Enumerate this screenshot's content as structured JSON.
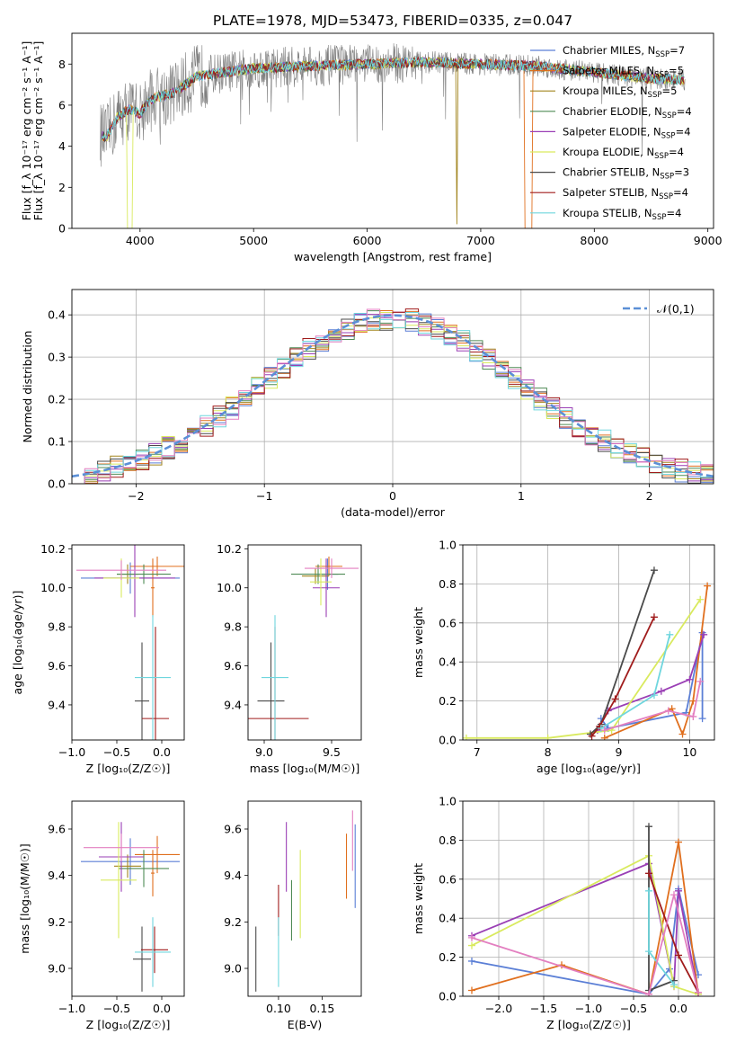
{
  "figure_title": "PLATE=1978, MJD=53473, FIBERID=0335, z=0.047",
  "models": [
    {
      "name": "Chabrier MILES",
      "nssp": "7",
      "color": "#5b7fd6"
    },
    {
      "name": "Salpeter MILES",
      "nssp": "5",
      "color": "#e06f1e"
    },
    {
      "name": "Kroupa MILES",
      "nssp": "5",
      "color": "#a2851f"
    },
    {
      "name": "Chabrier ELODIE",
      "nssp": "4",
      "color": "#4f8b55"
    },
    {
      "name": "Salpeter ELODIE",
      "nssp": "4",
      "color": "#9a3fb5"
    },
    {
      "name": "Kroupa ELODIE",
      "nssp": "4",
      "color": "#d9ea5e"
    },
    {
      "name": "Chabrier STELIB",
      "nssp": "3",
      "color": "#4a4a4a"
    },
    {
      "name": "Salpeter STELIB",
      "nssp": "4",
      "color": "#a01c1c"
    },
    {
      "name": "Kroupa STELIB",
      "nssp": "4",
      "color": "#6fd6de"
    }
  ],
  "extra_colors": {
    "pink": "#e37fc0",
    "data": "#7f7f7f",
    "normal": "#5b8fd6"
  },
  "chart_data": [
    {
      "id": "spectrum",
      "type": "line",
      "xlabel": "wavelength [Angstrom, rest frame]",
      "ylabel": "Flux [f_λ 10⁻¹⁷ erg cm⁻² s⁻¹ A⁻¹]",
      "xlim": [
        3400,
        9050
      ],
      "ylim": [
        0,
        9.5
      ],
      "xticks": [
        4000,
        5000,
        6000,
        7000,
        8000,
        9000
      ],
      "yticks": [
        0,
        2,
        4,
        6,
        8
      ],
      "legend_position": "upper right",
      "grid": false,
      "spectrum_trend": {
        "x": [
          3650,
          3700,
          3800,
          3900,
          4000,
          4100,
          4300,
          4500,
          5000,
          5500,
          6000,
          6500,
          7000,
          7500,
          8000,
          8500,
          8800
        ],
        "y": [
          4.6,
          4.4,
          5.4,
          5.8,
          5.6,
          6.3,
          6.6,
          7.4,
          7.8,
          7.9,
          8.0,
          8.1,
          8.0,
          7.9,
          7.6,
          7.3,
          7.2
        ]
      }
    },
    {
      "id": "residuals",
      "type": "histogram",
      "xlabel": "(data-model)/error",
      "ylabel": "Normed distribution",
      "xlim": [
        -2.5,
        2.5
      ],
      "ylim": [
        0,
        0.46
      ],
      "xticks": [
        -2,
        -1,
        0,
        1,
        2
      ],
      "yticks": [
        0.0,
        0.1,
        0.2,
        0.3,
        0.4
      ],
      "bin_width": 0.1,
      "grid": true,
      "legend_position": "upper right",
      "reference_curve": "𝒩(0,1)"
    },
    {
      "id": "age_vs_Z",
      "type": "errorbar",
      "xlabel": "Z [log₁₀(Z/Z☉)]",
      "ylabel": "age  [log₁₀(age/yr)]",
      "xlim": [
        -1.0,
        0.25
      ],
      "ylim": [
        9.22,
        10.22
      ],
      "xticks": [
        -1.0,
        -0.5,
        0.0
      ],
      "yticks": [
        9.4,
        9.6,
        9.8,
        10.0,
        10.2
      ],
      "points": [
        {
          "model": 0,
          "x": -0.35,
          "xerr": 0.55,
          "y": 10.05,
          "yerr": 0.08
        },
        {
          "model": 1,
          "x": -0.05,
          "xerr": 0.3,
          "y": 10.11,
          "yerr": 0.05
        },
        {
          "model": 1,
          "x": -0.1,
          "xerr": 0.02,
          "y": 10.0,
          "yerr": 0.15
        },
        {
          "model": 2,
          "x": -0.38,
          "xerr": 0.12,
          "y": 10.07,
          "yerr": 0.05
        },
        {
          "model": 3,
          "x": -0.2,
          "xerr": 0.3,
          "y": 10.07,
          "yerr": 0.05
        },
        {
          "model": 4,
          "x": -0.3,
          "xerr": 0.45,
          "y": 10.05,
          "yerr": 0.2
        },
        {
          "model": 5,
          "x": -0.45,
          "xerr": 0.2,
          "y": 10.05,
          "yerr": 0.1
        },
        {
          "model": 6,
          "x": -0.22,
          "xerr": 0.08,
          "y": 9.42,
          "yerr": 0.3
        },
        {
          "model": 7,
          "x": -0.07,
          "xerr": 0.15,
          "y": 9.33,
          "yerr": 0.47
        },
        {
          "model": 8,
          "x": -0.1,
          "xerr": 0.2,
          "y": 9.54,
          "yerr": 0.32
        },
        {
          "model": "pink",
          "x": -0.45,
          "xerr": 0.5,
          "y": 10.09,
          "yerr": 0.05
        }
      ]
    },
    {
      "id": "age_vs_mass",
      "type": "errorbar",
      "xlabel": "mass [log₁₀(M/M☉)]",
      "ylabel": "",
      "xlim": [
        8.88,
        9.72
      ],
      "ylim": [
        9.22,
        10.22
      ],
      "xticks": [
        9.0,
        9.5
      ],
      "yticks": [
        9.4,
        9.6,
        9.8,
        10.0,
        10.2
      ],
      "points": [
        {
          "model": 0,
          "x": 9.47,
          "xerr": 0.08,
          "y": 10.07,
          "yerr": 0.08
        },
        {
          "model": 1,
          "x": 9.48,
          "xerr": 0.1,
          "y": 10.11,
          "yerr": 0.05
        },
        {
          "model": 2,
          "x": 9.38,
          "xerr": 0.1,
          "y": 10.06,
          "yerr": 0.04
        },
        {
          "model": 3,
          "x": 9.4,
          "xerr": 0.2,
          "y": 10.07,
          "yerr": 0.05
        },
        {
          "model": 4,
          "x": 9.46,
          "xerr": 0.1,
          "y": 10.0,
          "yerr": 0.15
        },
        {
          "model": 5,
          "x": 9.42,
          "xerr": 0.08,
          "y": 10.03,
          "yerr": 0.12
        },
        {
          "model": 6,
          "x": 9.05,
          "xerr": 0.1,
          "y": 9.42,
          "yerr": 0.3
        },
        {
          "model": 7,
          "x": 9.08,
          "xerr": 0.25,
          "y": 9.33,
          "yerr": 0.47
        },
        {
          "model": 8,
          "x": 9.08,
          "xerr": 0.1,
          "y": 9.54,
          "yerr": 0.32
        },
        {
          "model": "pink",
          "x": 9.5,
          "xerr": 0.2,
          "y": 10.1,
          "yerr": 0.05
        }
      ]
    },
    {
      "id": "weight_vs_age",
      "type": "line",
      "xlabel": "age  [log₁₀(age/yr)]",
      "ylabel": "mass weight",
      "xlim": [
        6.8,
        10.35
      ],
      "ylim": [
        0,
        1.0
      ],
      "xticks": [
        7,
        8,
        9,
        10
      ],
      "yticks": [
        0.0,
        0.2,
        0.4,
        0.6,
        0.8,
        1.0
      ],
      "grid": true,
      "series": [
        {
          "model": 0,
          "x": [
            8.75,
            8.85,
            9.95,
            10.18,
            10.18
          ],
          "y": [
            0.11,
            0.06,
            0.14,
            0.55,
            0.11
          ]
        },
        {
          "model": 1,
          "x": [
            8.8,
            9.75,
            9.9,
            10.05,
            10.25
          ],
          "y": [
            0.01,
            0.16,
            0.03,
            0.2,
            0.79
          ]
        },
        {
          "model": 4,
          "x": [
            8.7,
            8.85,
            9.6,
            10.0,
            10.2
          ],
          "y": [
            0.05,
            0.15,
            0.25,
            0.31,
            0.54
          ]
        },
        {
          "model": 5,
          "x": [
            6.85,
            8.0,
            8.9,
            10.15
          ],
          "y": [
            0.01,
            0.01,
            0.05,
            0.72
          ]
        },
        {
          "model": 6,
          "x": [
            8.6,
            8.75,
            9.5
          ],
          "y": [
            0.03,
            0.08,
            0.87
          ]
        },
        {
          "model": 7,
          "x": [
            8.62,
            8.73,
            8.95,
            9.5
          ],
          "y": [
            0.02,
            0.07,
            0.21,
            0.63
          ]
        },
        {
          "model": 8,
          "x": [
            8.75,
            9.5,
            9.72
          ],
          "y": [
            0.06,
            0.23,
            0.54
          ]
        },
        {
          "model": "pink",
          "x": [
            8.8,
            9.7,
            10.05,
            10.15
          ],
          "y": [
            0.05,
            0.15,
            0.12,
            0.3
          ]
        }
      ]
    },
    {
      "id": "mass_vs_Z",
      "type": "errorbar",
      "xlabel": "Z [log₁₀(Z/Z☉)]",
      "ylabel": "mass [log₁₀(M/M☉)]",
      "xlim": [
        -1.0,
        0.25
      ],
      "ylim": [
        8.88,
        9.72
      ],
      "xticks": [
        -1.0,
        -0.5,
        0.0
      ],
      "yticks": [
        9.0,
        9.2,
        9.4,
        9.6
      ],
      "points": [
        {
          "model": 0,
          "x": -0.35,
          "xerr": 0.55,
          "y": 9.46,
          "yerr": 0.1
        },
        {
          "model": 1,
          "x": -0.05,
          "xerr": 0.25,
          "y": 9.49,
          "yerr": 0.08
        },
        {
          "model": 1,
          "x": -0.1,
          "xerr": 0.02,
          "y": 9.41,
          "yerr": 0.1
        },
        {
          "model": 2,
          "x": -0.38,
          "xerr": 0.15,
          "y": 9.44,
          "yerr": 0.05
        },
        {
          "model": 3,
          "x": -0.2,
          "xerr": 0.28,
          "y": 9.43,
          "yerr": 0.08
        },
        {
          "model": 4,
          "x": -0.45,
          "xerr": 0.25,
          "y": 9.48,
          "yerr": 0.15
        },
        {
          "model": 5,
          "x": -0.48,
          "xerr": 0.2,
          "y": 9.38,
          "yerr": 0.25
        },
        {
          "model": 6,
          "x": -0.22,
          "xerr": 0.1,
          "y": 9.04,
          "yerr": 0.14
        },
        {
          "model": 7,
          "x": -0.08,
          "xerr": 0.15,
          "y": 9.08,
          "yerr": 0.1
        },
        {
          "model": 8,
          "x": -0.1,
          "xerr": 0.2,
          "y": 9.07,
          "yerr": 0.15
        },
        {
          "model": "pink",
          "x": -0.45,
          "xerr": 0.42,
          "y": 9.52,
          "yerr": 0.06
        }
      ]
    },
    {
      "id": "mass_vs_ebv",
      "type": "errorbar",
      "xlabel": "E(B-V)",
      "ylabel": "",
      "xlim": [
        0.065,
        0.195
      ],
      "ylim": [
        8.88,
        9.72
      ],
      "xticks": [
        0.1,
        0.15
      ],
      "yticks": [
        9.0,
        9.2,
        9.4,
        9.6
      ],
      "points": [
        {
          "model": 0,
          "x": 0.188,
          "xerr": 0,
          "y": 9.44,
          "yerr": 0.18
        },
        {
          "model": 1,
          "x": 0.178,
          "xerr": 0,
          "y": 9.44,
          "yerr": 0.14
        },
        {
          "model": 3,
          "x": 0.115,
          "xerr": 0,
          "y": 9.25,
          "yerr": 0.13
        },
        {
          "model": 4,
          "x": 0.109,
          "xerr": 0,
          "y": 9.48,
          "yerr": 0.15
        },
        {
          "model": 5,
          "x": 0.125,
          "xerr": 0,
          "y": 9.32,
          "yerr": 0.19
        },
        {
          "model": 6,
          "x": 0.074,
          "xerr": 0,
          "y": 9.04,
          "yerr": 0.14
        },
        {
          "model": 7,
          "x": 0.1,
          "xerr": 0,
          "y": 9.25,
          "yerr": 0.11
        },
        {
          "model": 8,
          "x": 0.1,
          "xerr": 0,
          "y": 9.07,
          "yerr": 0.15
        },
        {
          "model": "pink",
          "x": 0.185,
          "xerr": 0,
          "y": 9.55,
          "yerr": 0.13
        }
      ]
    },
    {
      "id": "weight_vs_Z",
      "type": "line",
      "xlabel": "Z [log₁₀(Z/Z☉)]",
      "ylabel": "mass weight",
      "xlim": [
        -2.4,
        0.4
      ],
      "ylim": [
        0,
        1.0
      ],
      "xticks": [
        -2.0,
        -1.5,
        -1.0,
        -0.5,
        0.0
      ],
      "yticks": [
        0.0,
        0.2,
        0.4,
        0.6,
        0.8,
        1.0
      ],
      "grid": true,
      "series": [
        {
          "model": 0,
          "x": [
            -2.3,
            -0.33,
            -0.1,
            -0.0,
            0.22
          ],
          "y": [
            0.18,
            0.01,
            0.14,
            0.55,
            0.11
          ]
        },
        {
          "model": 1,
          "x": [
            -2.3,
            -1.3,
            -0.33,
            0.0,
            0.22
          ],
          "y": [
            0.03,
            0.16,
            0.01,
            0.79,
            0.01
          ]
        },
        {
          "model": 4,
          "x": [
            -2.3,
            -0.33,
            -0.05,
            0.0,
            0.22
          ],
          "y": [
            0.31,
            0.68,
            0.05,
            0.54,
            0.01
          ]
        },
        {
          "model": 5,
          "x": [
            -2.3,
            -0.33,
            -0.05,
            0.22
          ],
          "y": [
            0.26,
            0.72,
            0.05,
            0.01
          ]
        },
        {
          "model": 6,
          "x": [
            -0.33,
            -0.33,
            -0.05
          ],
          "y": [
            0.87,
            0.03,
            0.08
          ]
        },
        {
          "model": 7,
          "x": [
            -0.33,
            0.0,
            0.22
          ],
          "y": [
            0.63,
            0.21,
            0.02
          ]
        },
        {
          "model": 8,
          "x": [
            -0.33,
            -0.33,
            -0.05
          ],
          "y": [
            0.54,
            0.23,
            0.06
          ]
        },
        {
          "model": "pink",
          "x": [
            -2.3,
            -0.33,
            -0.05,
            0.22
          ],
          "y": [
            0.3,
            0.01,
            0.52,
            0.02
          ]
        }
      ]
    }
  ]
}
